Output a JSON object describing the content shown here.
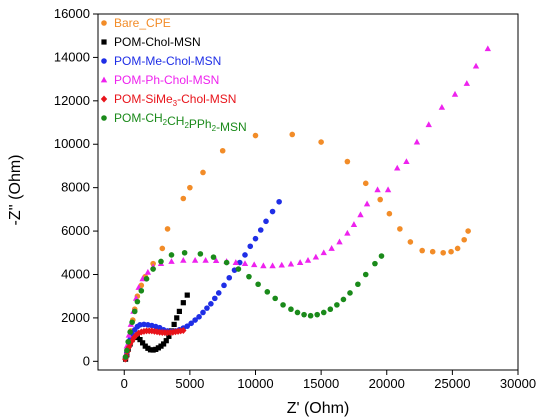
{
  "chart_data": {
    "type": "scatter",
    "xlabel": "Z' (Ohm)",
    "ylabel": "-Z'' (Ohm)",
    "xlim": [
      -2000,
      30000
    ],
    "ylim": [
      -400,
      16000
    ],
    "xticks": [
      0,
      5000,
      10000,
      15000,
      20000,
      25000,
      30000
    ],
    "yticks": [
      0,
      2000,
      4000,
      6000,
      8000,
      10000,
      12000,
      14000,
      16000
    ],
    "grid": false,
    "legend_position": "top-left",
    "series": [
      {
        "name": "Bare_CPE",
        "color": "#F28C28",
        "marker": "circle",
        "points": [
          [
            150,
            200
          ],
          [
            250,
            500
          ],
          [
            350,
            900
          ],
          [
            500,
            1400
          ],
          [
            650,
            1900
          ],
          [
            800,
            2400
          ],
          [
            1000,
            3000
          ],
          [
            1300,
            3500
          ],
          [
            1600,
            3900
          ],
          [
            2200,
            4500
          ],
          [
            2900,
            5200
          ],
          [
            3300,
            6100
          ],
          [
            4500,
            7500
          ],
          [
            5000,
            8000
          ],
          [
            6000,
            8700
          ],
          [
            7500,
            9700
          ],
          [
            10000,
            10400
          ],
          [
            12800,
            10450
          ],
          [
            15000,
            10100
          ],
          [
            17000,
            9200
          ],
          [
            18400,
            8200
          ],
          [
            19500,
            7450
          ],
          [
            20200,
            6800
          ],
          [
            21000,
            6100
          ],
          [
            21800,
            5500
          ],
          [
            22700,
            5100
          ],
          [
            23500,
            5050
          ],
          [
            24300,
            5000
          ],
          [
            24900,
            5050
          ],
          [
            25400,
            5200
          ],
          [
            25900,
            5600
          ],
          [
            26200,
            6000
          ]
        ]
      },
      {
        "name": "POM-Chol-MSN",
        "color": "#000000",
        "marker": "square",
        "points": [
          [
            100,
            100
          ],
          [
            200,
            300
          ],
          [
            300,
            550
          ],
          [
            450,
            800
          ],
          [
            600,
            1000
          ],
          [
            800,
            1100
          ],
          [
            1000,
            1100
          ],
          [
            1200,
            1000
          ],
          [
            1400,
            850
          ],
          [
            1600,
            700
          ],
          [
            1800,
            600
          ],
          [
            2000,
            530
          ],
          [
            2200,
            520
          ],
          [
            2400,
            550
          ],
          [
            2600,
            620
          ],
          [
            2800,
            700
          ],
          [
            3000,
            800
          ],
          [
            3200,
            950
          ],
          [
            3400,
            1150
          ],
          [
            3600,
            1400
          ],
          [
            3800,
            1700
          ],
          [
            4000,
            2000
          ],
          [
            4200,
            2300
          ],
          [
            4500,
            2700
          ],
          [
            4800,
            3050
          ]
        ]
      },
      {
        "name": "POM-Me-Chol-MSN",
        "color": "#1f2ee6",
        "marker": "circle",
        "points": [
          [
            100,
            150
          ],
          [
            200,
            400
          ],
          [
            300,
            700
          ],
          [
            450,
            1000
          ],
          [
            600,
            1250
          ],
          [
            800,
            1450
          ],
          [
            1000,
            1600
          ],
          [
            1200,
            1680
          ],
          [
            1500,
            1700
          ],
          [
            1800,
            1680
          ],
          [
            2100,
            1650
          ],
          [
            2400,
            1600
          ],
          [
            2700,
            1550
          ],
          [
            3000,
            1450
          ],
          [
            3300,
            1400
          ],
          [
            3600,
            1370
          ],
          [
            3900,
            1400
          ],
          [
            4200,
            1450
          ],
          [
            4500,
            1530
          ],
          [
            4800,
            1620
          ],
          [
            5100,
            1750
          ],
          [
            5400,
            1900
          ],
          [
            5700,
            2050
          ],
          [
            6000,
            2250
          ],
          [
            6300,
            2450
          ],
          [
            6600,
            2650
          ],
          [
            6900,
            2900
          ],
          [
            7200,
            3150
          ],
          [
            7600,
            3500
          ],
          [
            8000,
            3850
          ],
          [
            8400,
            4200
          ],
          [
            8800,
            4550
          ],
          [
            9200,
            4900
          ],
          [
            9600,
            5300
          ],
          [
            10000,
            5650
          ],
          [
            10400,
            6050
          ],
          [
            10800,
            6450
          ],
          [
            11300,
            6900
          ],
          [
            11800,
            7350
          ]
        ]
      },
      {
        "name": "POM-Ph-Chol-MSN",
        "color": "#EE22EE",
        "marker": "triangle",
        "points": [
          [
            100,
            300
          ],
          [
            200,
            700
          ],
          [
            350,
            1200
          ],
          [
            500,
            1700
          ],
          [
            700,
            2300
          ],
          [
            900,
            2900
          ],
          [
            1100,
            3400
          ],
          [
            1400,
            3800
          ],
          [
            1800,
            4100
          ],
          [
            2200,
            4350
          ],
          [
            2800,
            4500
          ],
          [
            3600,
            4600
          ],
          [
            4500,
            4650
          ],
          [
            5400,
            4650
          ],
          [
            6200,
            4650
          ],
          [
            7000,
            4640
          ],
          [
            7800,
            4600
          ],
          [
            8500,
            4550
          ],
          [
            9200,
            4500
          ],
          [
            9900,
            4450
          ],
          [
            10600,
            4400
          ],
          [
            11300,
            4400
          ],
          [
            12000,
            4430
          ],
          [
            12700,
            4480
          ],
          [
            13400,
            4550
          ],
          [
            14000,
            4650
          ],
          [
            14600,
            4800
          ],
          [
            15200,
            5000
          ],
          [
            15800,
            5200
          ],
          [
            16400,
            5500
          ],
          [
            17000,
            5900
          ],
          [
            17500,
            6300
          ],
          [
            18000,
            6750
          ],
          [
            18500,
            7250
          ],
          [
            19300,
            7900
          ],
          [
            20100,
            7900
          ],
          [
            20800,
            8900
          ],
          [
            21500,
            9200
          ],
          [
            22300,
            10100
          ],
          [
            23200,
            10900
          ],
          [
            24200,
            11700
          ],
          [
            25200,
            12300
          ],
          [
            26100,
            12800
          ],
          [
            26800,
            13600
          ],
          [
            27700,
            14400
          ]
        ]
      },
      {
        "name": "POM-SiMe3-Chol-MSN",
        "label_text": "POM-SiMe",
        "label_sub": "3",
        "label_suffix": "-Chol-MSN",
        "color": "#E8141B",
        "marker": "diamond",
        "points": [
          [
            80,
            100
          ],
          [
            150,
            250
          ],
          [
            250,
            450
          ],
          [
            350,
            650
          ],
          [
            450,
            800
          ],
          [
            600,
            950
          ],
          [
            750,
            1100
          ],
          [
            900,
            1200
          ],
          [
            1100,
            1300
          ],
          [
            1300,
            1350
          ],
          [
            1500,
            1380
          ],
          [
            1700,
            1400
          ],
          [
            1900,
            1400
          ],
          [
            2100,
            1400
          ],
          [
            2300,
            1380
          ],
          [
            2500,
            1360
          ],
          [
            2700,
            1340
          ],
          [
            2900,
            1330
          ],
          [
            3100,
            1320
          ],
          [
            3300,
            1320
          ],
          [
            3500,
            1330
          ],
          [
            3700,
            1340
          ],
          [
            3900,
            1360
          ],
          [
            4100,
            1380
          ],
          [
            4300,
            1400
          ],
          [
            4500,
            1420
          ]
        ]
      },
      {
        "name": "POM-CH2CH2PPh2-MSN",
        "label_text": "POM-CH",
        "label_parts": [
          [
            "POM-CH",
            ""
          ],
          [
            "2",
            "sub"
          ],
          [
            "CH",
            ""
          ],
          [
            "2",
            "sub"
          ],
          [
            "PPh",
            ""
          ],
          [
            "2",
            "sub"
          ],
          [
            "-MSN",
            ""
          ]
        ],
        "color": "#1A8A1A",
        "marker": "circle",
        "points": [
          [
            100,
            200
          ],
          [
            200,
            500
          ],
          [
            300,
            900
          ],
          [
            450,
            1350
          ],
          [
            600,
            1800
          ],
          [
            800,
            2300
          ],
          [
            1000,
            2750
          ],
          [
            1300,
            3250
          ],
          [
            1700,
            3800
          ],
          [
            2200,
            4250
          ],
          [
            2800,
            4600
          ],
          [
            3600,
            4900
          ],
          [
            4600,
            5000
          ],
          [
            5800,
            4950
          ],
          [
            6800,
            4800
          ],
          [
            7800,
            4550
          ],
          [
            8700,
            4250
          ],
          [
            9500,
            3900
          ],
          [
            10200,
            3550
          ],
          [
            10900,
            3200
          ],
          [
            11500,
            2900
          ],
          [
            12100,
            2600
          ],
          [
            12700,
            2400
          ],
          [
            13200,
            2250
          ],
          [
            13700,
            2150
          ],
          [
            14200,
            2100
          ],
          [
            14700,
            2150
          ],
          [
            15200,
            2250
          ],
          [
            15700,
            2400
          ],
          [
            16200,
            2600
          ],
          [
            16700,
            2850
          ],
          [
            17200,
            3150
          ],
          [
            17800,
            3550
          ],
          [
            18400,
            4000
          ],
          [
            19100,
            4500
          ],
          [
            19600,
            4850
          ]
        ]
      }
    ]
  }
}
